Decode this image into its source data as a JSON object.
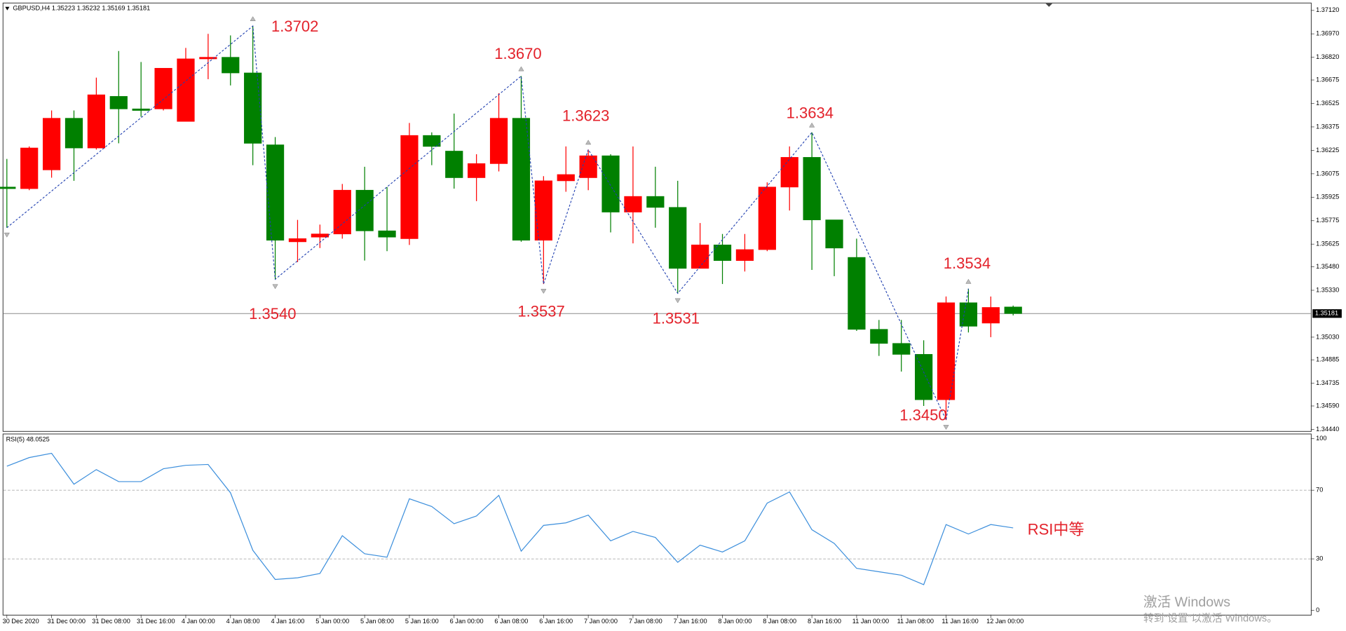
{
  "chart_data": [
    {
      "type": "candlestick",
      "title": "GBPUSD,H4  1.35223 1.35232 1.35169 1.35181",
      "categories": [
        "30 Dec 2020",
        null,
        "31 Dec 00:00",
        null,
        "31 Dec 08:00",
        null,
        "31 Dec 16:00",
        null,
        "4 Jan 00:00",
        null,
        "4 Jan 08:00",
        null,
        "4 Jan 16:00",
        null,
        "5 Jan 00:00",
        null,
        "5 Jan 08:00",
        null,
        "5 Jan 16:00",
        null,
        "6 Jan 00:00",
        null,
        "6 Jan 08:00",
        null,
        "6 Jan 16:00",
        null,
        "7 Jan 00:00",
        null,
        "7 Jan 08:00",
        null,
        "7 Jan 16:00",
        null,
        "8 Jan 00:00",
        null,
        "8 Jan 08:00",
        null,
        "8 Jan 16:00",
        null,
        "11 Jan 00:00",
        null,
        "11 Jan 08:00",
        null,
        "11 Jan 16:00",
        null,
        "12 Jan 00:00",
        null
      ],
      "open": [
        1.3599,
        1.3598,
        1.361,
        1.3643,
        1.3624,
        1.3657,
        1.3649,
        1.3649,
        1.3641,
        1.3681,
        1.3682,
        1.3672,
        1.3626,
        1.3564,
        1.3567,
        1.3569,
        1.3597,
        1.3571,
        1.3566,
        1.3632,
        1.3622,
        1.3605,
        1.3614,
        1.3643,
        1.3565,
        1.3603,
        1.3605,
        1.3619,
        1.3583,
        1.3593,
        1.3586,
        1.3547,
        1.3562,
        1.3552,
        1.3559,
        1.3599,
        1.3618,
        1.3578,
        1.3554,
        1.3508,
        1.3499,
        1.3492,
        1.3463,
        1.3525,
        1.3512,
        1.35223
      ],
      "high": [
        1.3617,
        1.3625,
        1.3648,
        1.3648,
        1.3669,
        1.3686,
        1.3679,
        1.3675,
        1.3688,
        1.3697,
        1.3696,
        1.3702,
        1.3631,
        1.3578,
        1.3575,
        1.3601,
        1.3612,
        1.3599,
        1.364,
        1.3634,
        1.3646,
        1.362,
        1.3659,
        1.367,
        1.3606,
        1.3625,
        1.3623,
        1.362,
        1.3625,
        1.3612,
        1.3603,
        1.3576,
        1.3569,
        1.3569,
        1.3602,
        1.3625,
        1.3634,
        1.3578,
        1.3566,
        1.3514,
        1.3514,
        1.3501,
        1.3529,
        1.3534,
        1.3529,
        1.35232
      ],
      "low": [
        1.3573,
        1.3597,
        1.3605,
        1.3603,
        1.3623,
        1.3627,
        1.3644,
        1.3648,
        1.3641,
        1.3668,
        1.3664,
        1.3613,
        1.354,
        1.3551,
        1.356,
        1.3566,
        1.3552,
        1.3558,
        1.3562,
        1.3613,
        1.3598,
        1.359,
        1.3609,
        1.3564,
        1.3537,
        1.3596,
        1.3597,
        1.357,
        1.3563,
        1.3573,
        1.3531,
        1.3547,
        1.3537,
        1.3545,
        1.3558,
        1.3584,
        1.3546,
        1.3542,
        1.3507,
        1.3491,
        1.3481,
        1.3459,
        1.345,
        1.3506,
        1.3503,
        1.35169
      ],
      "close": [
        1.3598,
        1.3624,
        1.3643,
        1.3624,
        1.3658,
        1.3649,
        1.3648,
        1.3675,
        1.3681,
        1.3682,
        1.3672,
        1.3627,
        1.3565,
        1.3566,
        1.3569,
        1.3597,
        1.3571,
        1.3567,
        1.3632,
        1.3625,
        1.3605,
        1.3614,
        1.3643,
        1.3565,
        1.3603,
        1.3607,
        1.3619,
        1.3583,
        1.3593,
        1.3586,
        1.3547,
        1.3562,
        1.3552,
        1.3559,
        1.3599,
        1.3618,
        1.3578,
        1.356,
        1.3508,
        1.3499,
        1.3492,
        1.3463,
        1.3525,
        1.351,
        1.3522,
        1.35181
      ],
      "up_color": "#ff0000",
      "down_color": "#008000",
      "zigzag_color": "#1f3fb0",
      "ylim": [
        1.3443,
        1.3717
      ],
      "yticks": [
        {
          "value": 1.3712,
          "label": "1.37120"
        },
        {
          "value": 1.3697,
          "label": "1.36970"
        },
        {
          "value": 1.3682,
          "label": "1.36820"
        },
        {
          "value": 1.36675,
          "label": "1.36675"
        },
        {
          "value": 1.36525,
          "label": "1.36525"
        },
        {
          "value": 1.36375,
          "label": "1.36375"
        },
        {
          "value": 1.36225,
          "label": "1.36225"
        },
        {
          "value": 1.36075,
          "label": "1.36075"
        },
        {
          "value": 1.35925,
          "label": "1.35925"
        },
        {
          "value": 1.35775,
          "label": "1.35775"
        },
        {
          "value": 1.35625,
          "label": "1.35625"
        },
        {
          "value": 1.3548,
          "label": "1.35480"
        },
        {
          "value": 1.3533,
          "label": "1.35330"
        },
        {
          "value": 1.3503,
          "label": "1.35030"
        },
        {
          "value": 1.34885,
          "label": "1.34885"
        },
        {
          "value": 1.34735,
          "label": "1.34735"
        },
        {
          "value": 1.3459,
          "label": "1.34590"
        },
        {
          "value": 1.3444,
          "label": "1.34440"
        }
      ],
      "current_price": {
        "value": 1.35181,
        "label": "1.35181"
      },
      "annotations": [
        "1.3702",
        "1.3540",
        "1.3670",
        "1.3537",
        "1.3623",
        "1.3531",
        "1.3634",
        "1.3534",
        "1.3450"
      ]
    },
    {
      "type": "line",
      "title": "RSI(5) 48.0525",
      "values": [
        84,
        89,
        91.5,
        73.5,
        82,
        75,
        75,
        82.5,
        84.5,
        85,
        68.5,
        35,
        18,
        19,
        21.5,
        43.5,
        33,
        31,
        65,
        60.5,
        50.5,
        55,
        67,
        34.5,
        49.5,
        51,
        55.5,
        40.5,
        46,
        42.5,
        28,
        38,
        34,
        40.5,
        62.5,
        69,
        47,
        39,
        24.5,
        22.5,
        20.5,
        15,
        50,
        44.5,
        50,
        48.0525
      ],
      "color": "#3d8fdc",
      "ylim": [
        0,
        100
      ],
      "yticks": [
        0,
        30,
        70,
        100
      ],
      "annotations": [
        "RSI中等"
      ]
    }
  ],
  "watermark": [
    "激活 Windows",
    "转到“设置”以激活 Windows。"
  ]
}
